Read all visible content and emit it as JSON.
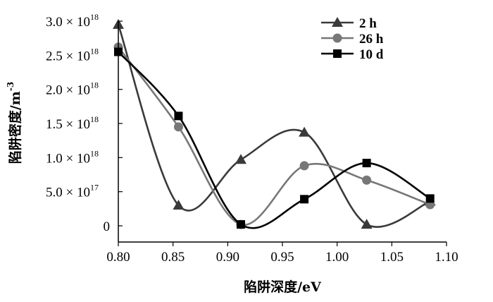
{
  "chart_data": {
    "type": "line",
    "xlabel": "陷阱深度/eV",
    "ylabel": "陷阱密度/m",
    "ylabel_sup": "-3",
    "xlim": [
      0.8,
      1.1
    ],
    "ylim": [
      0,
      3e+18
    ],
    "x_ticks": [
      {
        "value": 0.8,
        "label": "0.80"
      },
      {
        "value": 0.85,
        "label": "0.85"
      },
      {
        "value": 0.9,
        "label": "0.90"
      },
      {
        "value": 0.95,
        "label": "0.95"
      },
      {
        "value": 1.0,
        "label": "1.00"
      },
      {
        "value": 1.05,
        "label": "1.05"
      },
      {
        "value": 1.1,
        "label": "1.10"
      }
    ],
    "y_ticks": [
      {
        "value": 0,
        "label": "0",
        "exp": ""
      },
      {
        "value": 5e+17,
        "label": "5.0 × 10",
        "exp": "17"
      },
      {
        "value": 1e+18,
        "label": "1.0 × 10",
        "exp": "18"
      },
      {
        "value": 1.5e+18,
        "label": "1.5 × 10",
        "exp": "18"
      },
      {
        "value": 2e+18,
        "label": "2.0 × 10",
        "exp": "18"
      },
      {
        "value": 2.5e+18,
        "label": "2.5 × 10",
        "exp": "18"
      },
      {
        "value": 3e+18,
        "label": "3.0 × 10",
        "exp": "18"
      }
    ],
    "legend_position": "top-right",
    "series": [
      {
        "name": "2 h",
        "marker": "triangle",
        "color": "#3a3a3a",
        "x": [
          0.8,
          0.855,
          0.912,
          0.97,
          1.027,
          1.085
        ],
        "y": [
          2.95e+18,
          3e+17,
          9.7e+17,
          1.37e+18,
          2e+16,
          3.6e+17
        ]
      },
      {
        "name": "26 h",
        "marker": "circle",
        "color": "#777777",
        "x": [
          0.8,
          0.855,
          0.912,
          0.97,
          1.027,
          1.085
        ],
        "y": [
          2.62e+18,
          1.45e+18,
          2e+16,
          8.8e+17,
          6.7e+17,
          3.1e+17
        ]
      },
      {
        "name": "10 d",
        "marker": "square",
        "color": "#000000",
        "x": [
          0.8,
          0.855,
          0.912,
          0.97,
          1.027,
          1.085
        ],
        "y": [
          2.55e+18,
          1.61e+18,
          2e+16,
          3.9e+17,
          9.2e+17,
          4e+17
        ]
      }
    ]
  }
}
